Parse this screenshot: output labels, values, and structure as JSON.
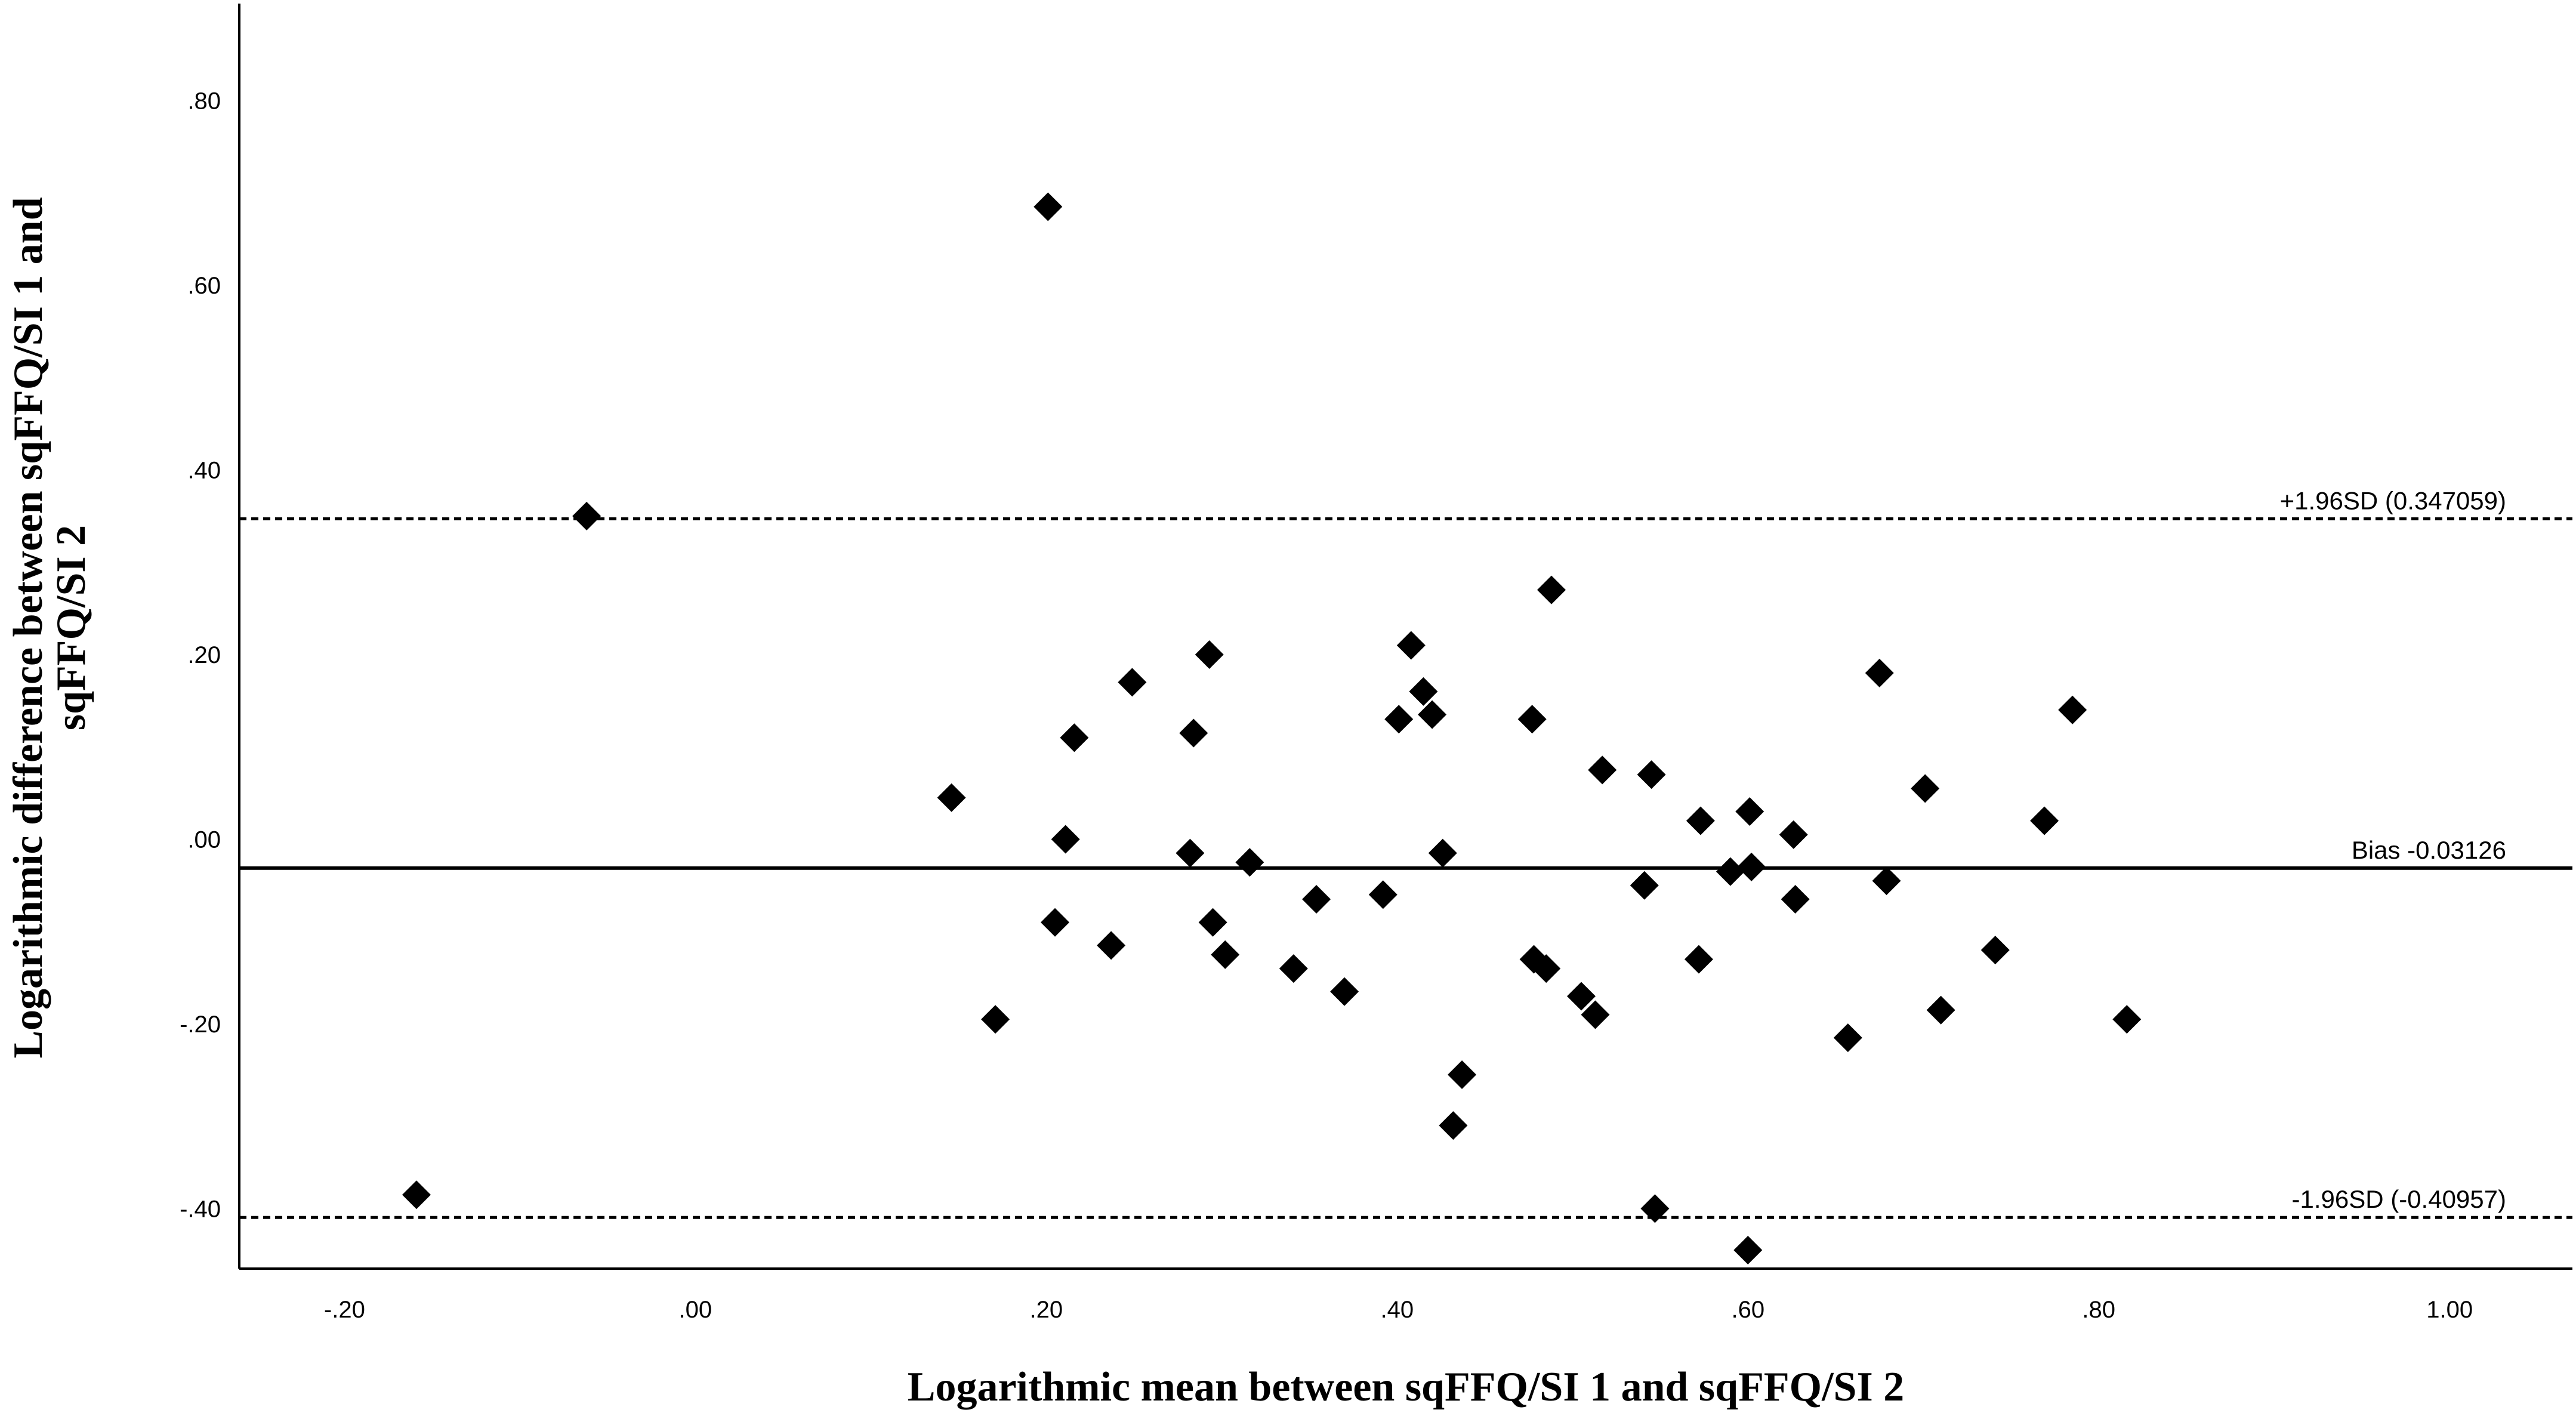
{
  "chart_data": {
    "type": "scatter",
    "xlabel": "Logarithmic mean between sqFFQ/SI 1 and sqFFQ/SI 2",
    "ylabel_lines": [
      "Logarithmic difference between sqFFQ/SI 1 and",
      "sqFFQ/SI 2"
    ],
    "xlim": [
      -0.26,
      1.07
    ],
    "ylim": [
      -0.465,
      0.905
    ],
    "x_ticks": [
      {
        "value": -0.2,
        "label": "-.20"
      },
      {
        "value": 0.0,
        "label": ".00"
      },
      {
        "value": 0.2,
        "label": ".20"
      },
      {
        "value": 0.4,
        "label": ".40"
      },
      {
        "value": 0.6,
        "label": ".60"
      },
      {
        "value": 0.8,
        "label": ".80"
      },
      {
        "value": 1.0,
        "label": "1.00"
      }
    ],
    "y_ticks": [
      {
        "value": -0.4,
        "label": "-.40"
      },
      {
        "value": -0.2,
        "label": "-.20"
      },
      {
        "value": 0.0,
        "label": ".00"
      },
      {
        "value": 0.2,
        "label": ".20"
      },
      {
        "value": 0.4,
        "label": ".40"
      },
      {
        "value": 0.6,
        "label": ".60"
      },
      {
        "value": 0.8,
        "label": ".80"
      }
    ],
    "reference_lines": [
      {
        "value": 0.347059,
        "label": "+1.96SD (0.347059)",
        "style": "dashed"
      },
      {
        "value": -0.03126,
        "label": "Bias -0.03126",
        "style": "solid"
      },
      {
        "value": -0.40957,
        "label": "-1.96SD (-0.40957)",
        "style": "dashed"
      }
    ],
    "marker": "diamond",
    "marker_color": "#000000",
    "grid": false,
    "points": [
      {
        "x": -0.159,
        "y": -0.385
      },
      {
        "x": -0.062,
        "y": 0.35
      },
      {
        "x": 0.146,
        "y": 0.045
      },
      {
        "x": 0.171,
        "y": -0.195
      },
      {
        "x": 0.201,
        "y": 0.685
      },
      {
        "x": 0.205,
        "y": -0.09
      },
      {
        "x": 0.211,
        "y": 0.0
      },
      {
        "x": 0.216,
        "y": 0.11
      },
      {
        "x": 0.237,
        "y": -0.115
      },
      {
        "x": 0.249,
        "y": 0.17
      },
      {
        "x": 0.282,
        "y": -0.015
      },
      {
        "x": 0.284,
        "y": 0.115
      },
      {
        "x": 0.293,
        "y": 0.2
      },
      {
        "x": 0.295,
        "y": -0.09
      },
      {
        "x": 0.302,
        "y": -0.125
      },
      {
        "x": 0.316,
        "y": -0.025
      },
      {
        "x": 0.341,
        "y": -0.14
      },
      {
        "x": 0.354,
        "y": -0.065
      },
      {
        "x": 0.37,
        "y": -0.165
      },
      {
        "x": 0.392,
        "y": -0.06
      },
      {
        "x": 0.401,
        "y": 0.13
      },
      {
        "x": 0.408,
        "y": 0.21
      },
      {
        "x": 0.415,
        "y": 0.16
      },
      {
        "x": 0.42,
        "y": 0.135
      },
      {
        "x": 0.426,
        "y": -0.015
      },
      {
        "x": 0.432,
        "y": -0.31
      },
      {
        "x": 0.437,
        "y": -0.255
      },
      {
        "x": 0.477,
        "y": 0.13
      },
      {
        "x": 0.478,
        "y": -0.13
      },
      {
        "x": 0.485,
        "y": -0.14
      },
      {
        "x": 0.488,
        "y": 0.27
      },
      {
        "x": 0.505,
        "y": -0.17
      },
      {
        "x": 0.513,
        "y": -0.19
      },
      {
        "x": 0.517,
        "y": 0.075
      },
      {
        "x": 0.541,
        "y": -0.05
      },
      {
        "x": 0.545,
        "y": 0.07
      },
      {
        "x": 0.547,
        "y": -0.4
      },
      {
        "x": 0.572,
        "y": -0.13
      },
      {
        "x": 0.573,
        "y": 0.02
      },
      {
        "x": 0.59,
        "y": -0.035
      },
      {
        "x": 0.6,
        "y": -0.445
      },
      {
        "x": 0.601,
        "y": 0.03
      },
      {
        "x": 0.602,
        "y": -0.03
      },
      {
        "x": 0.626,
        "y": 0.005
      },
      {
        "x": 0.627,
        "y": -0.065
      },
      {
        "x": 0.657,
        "y": -0.215
      },
      {
        "x": 0.675,
        "y": 0.18
      },
      {
        "x": 0.679,
        "y": -0.045
      },
      {
        "x": 0.701,
        "y": 0.055
      },
      {
        "x": 0.71,
        "y": -0.185
      },
      {
        "x": 0.741,
        "y": -0.12
      },
      {
        "x": 0.769,
        "y": 0.02
      },
      {
        "x": 0.785,
        "y": 0.14
      },
      {
        "x": 0.816,
        "y": -0.195
      }
    ]
  }
}
